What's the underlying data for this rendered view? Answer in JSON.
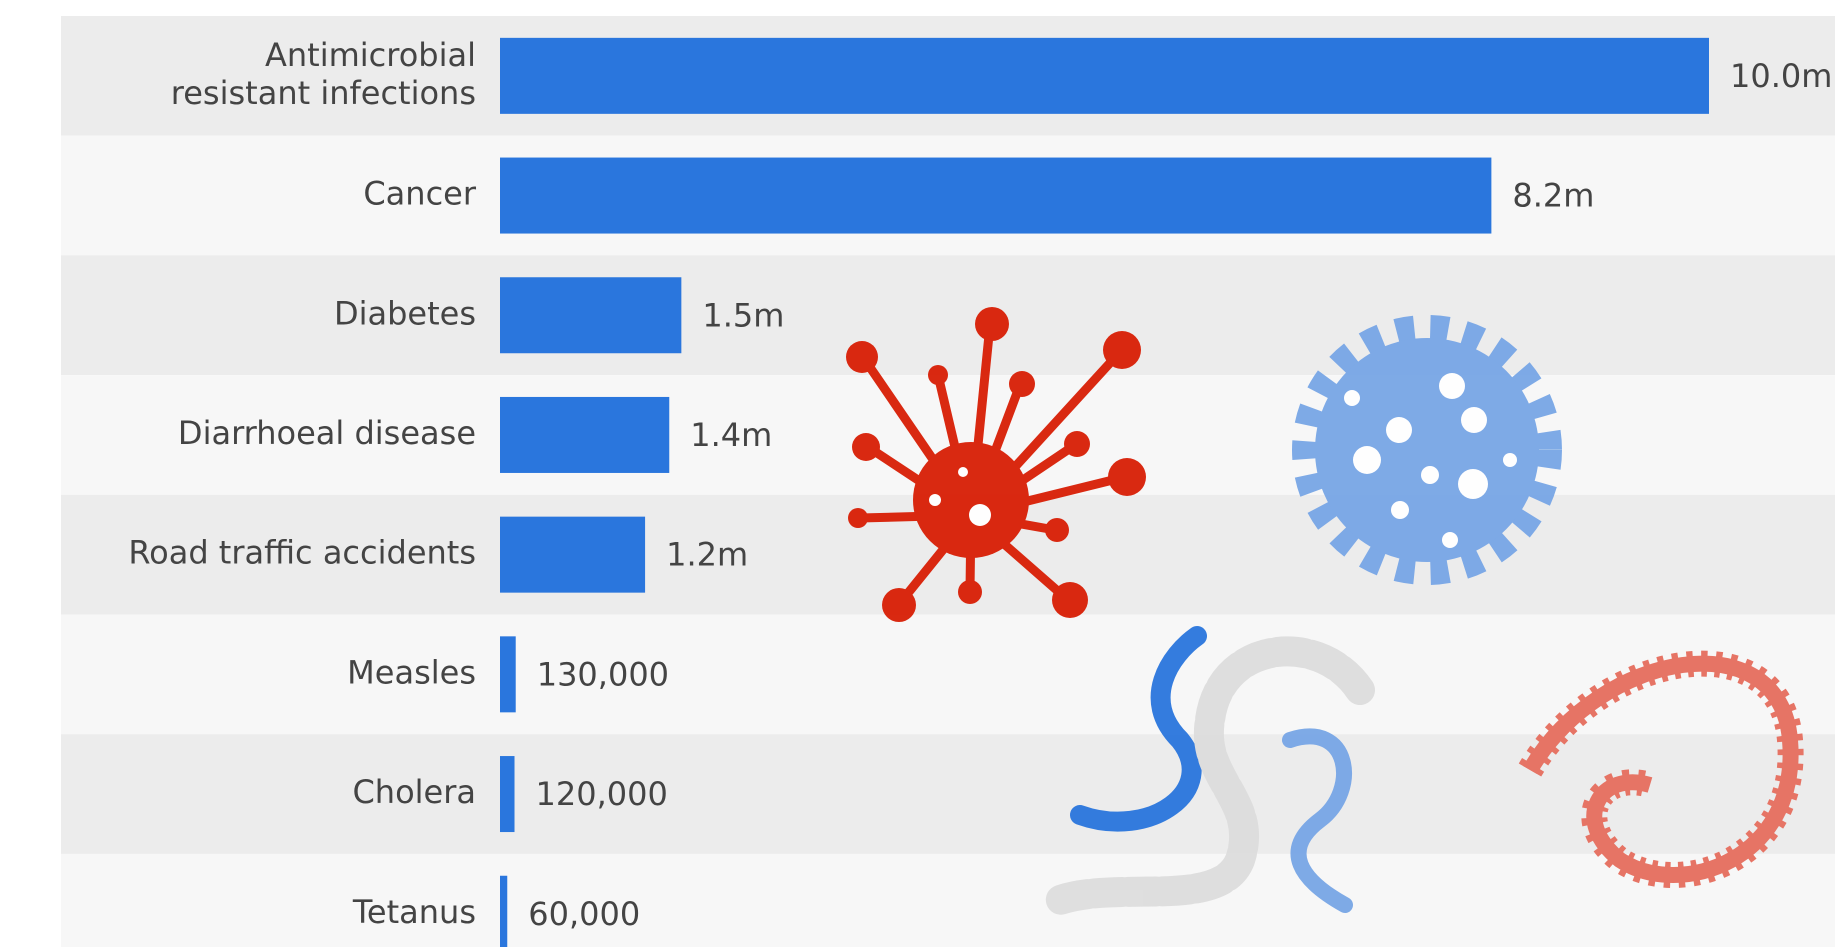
{
  "chart_data": {
    "type": "bar",
    "orientation": "horizontal",
    "color": "#2a76dd",
    "categories": [
      "Antimicrobial\nresistant infections",
      "Cancer",
      "Diabetes",
      "Diarrhoeal disease",
      "Road traffic accidents",
      "Measles",
      "Cholera",
      "Tetanus"
    ],
    "values": [
      10000000,
      8200000,
      1500000,
      1400000,
      1200000,
      130000,
      120000,
      60000
    ],
    "value_labels": [
      "10.0m",
      "8.2m",
      "1.5m",
      "1.4m",
      "1.2m",
      "130,000",
      "120,000",
      "60,000"
    ]
  }
}
